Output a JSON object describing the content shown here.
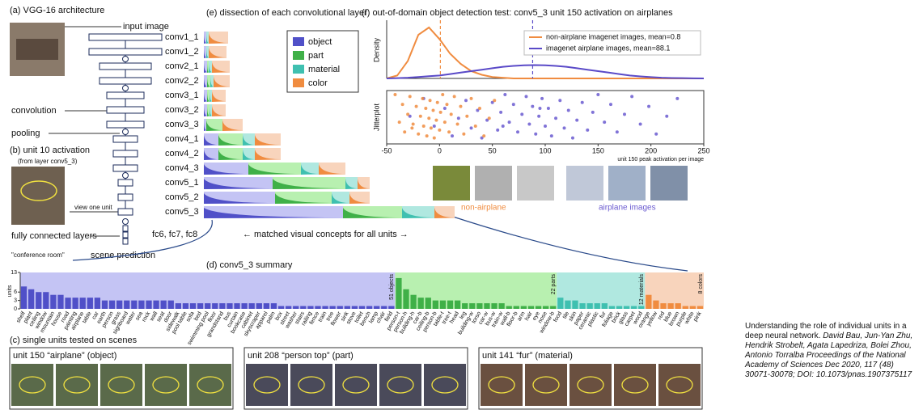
{
  "figure": {
    "panel_a": {
      "label": "(a) VGG-16 architecture",
      "input": "input image",
      "convolution": "convolution",
      "pooling": "pooling",
      "fc": "fc6, fc7, fc8",
      "fc_label": "fully connected layers",
      "scene": "\"conference room\"",
      "scene_label": "scene prediction"
    },
    "panel_b": {
      "label": "(b) unit 10 activation",
      "sub": "(from layer conv5_3)",
      "view": "view one unit"
    },
    "panel_e": {
      "title": "(e) dissection of each convolutional layer",
      "legend": [
        {
          "name": "object",
          "color": "#5050c8",
          "light": "#c4c4f4"
        },
        {
          "name": "part",
          "color": "#3fb048",
          "light": "#b8f0b0"
        },
        {
          "name": "material",
          "color": "#3fc0b0",
          "light": "#b0e8e0"
        },
        {
          "name": "color",
          "color": "#f08c40",
          "light": "#f8d4bc"
        }
      ],
      "layers": [
        {
          "name": "conv1_1",
          "units": [
            3,
            0,
            3,
            24
          ]
        },
        {
          "name": "conv1_2",
          "units": [
            3,
            0,
            3,
            22
          ]
        },
        {
          "name": "conv2_1",
          "units": [
            4,
            2,
            4,
            22
          ]
        },
        {
          "name": "conv2_2",
          "units": [
            4,
            4,
            4,
            20
          ]
        },
        {
          "name": "conv3_1",
          "units": [
            4,
            3,
            3,
            17
          ]
        },
        {
          "name": "conv3_2",
          "units": [
            4,
            3,
            3,
            17
          ]
        },
        {
          "name": "conv3_3",
          "units": [
            3,
            20,
            0,
            25
          ]
        },
        {
          "name": "conv4_1",
          "units": [
            18,
            30,
            15,
            32
          ]
        },
        {
          "name": "conv4_2",
          "units": [
            18,
            30,
            15,
            32
          ]
        },
        {
          "name": "conv4_3",
          "units": [
            55,
            65,
            22,
            33
          ]
        },
        {
          "name": "conv5_1",
          "units": [
            85,
            90,
            15,
            15
          ]
        },
        {
          "name": "conv5_2",
          "units": [
            88,
            70,
            22,
            25
          ]
        },
        {
          "name": "conv5_3",
          "units": [
            172,
            73,
            40,
            25
          ]
        }
      ],
      "caption": "← matched visual concepts for all units →"
    },
    "panel_f": {
      "title": "(f) out-of-domain object detection test: conv5_3 unit 150 activation on airplanes",
      "non_airplane": "non-airplane",
      "airplane": "airplane images"
    },
    "panel_c": {
      "title": "(c) single units tested on scenes",
      "units": [
        "unit 150 “airplane” (object)",
        "unit 208 “person top” (part)",
        "unit 141 “fur” (material)"
      ]
    },
    "citation": {
      "plain": "Understanding the role of individual units in a deep neural network.",
      "italic": "David Bau, Jun-Yan Zhu, Hendrik Strobelt, Agata Lapedriza, Bolei Zhou, Antonio Torralba Proceedings of the National Academy of Sciences Dec 2020, 117 (48) 30071-30078; DOI: 10.1073/pnas.1907375117"
    }
  },
  "chart_data": [
    {
      "type": "bar",
      "title": "(d) conv5_3 summary",
      "y_label": "units",
      "ylim": [
        0,
        13
      ],
      "yticks": [
        0,
        3,
        6,
        13
      ],
      "groups": [
        {
          "label": "51 objects",
          "color": "#5050c8",
          "background": "#c4c4f4",
          "categories": [
            "shelf",
            "plant",
            "ceiling",
            "window",
            "mountain",
            "house",
            "road",
            "painting",
            "airplane",
            "table",
            "car",
            "earth",
            "person",
            "grass",
            "signboard",
            "water",
            "sea",
            "rock",
            "wall",
            "seat",
            "door",
            "sidewalk",
            "pool table",
            "sofa",
            "bed",
            "swimming pool",
            "floor",
            "grandstand",
            "bus",
            "curtain",
            "bookcase",
            "cabinet",
            "skyscraper",
            "apparel",
            "palm",
            "box",
            "street",
            "washer",
            "stairs",
            "railing",
            "fence",
            "train",
            "tree",
            "flower",
            "sink",
            "stove",
            "toilet",
            "bench",
            "lamp",
            "chair",
            "field"
          ],
          "values": [
            8,
            7,
            6,
            6,
            5,
            5,
            4,
            4,
            4,
            4,
            4,
            3,
            3,
            3,
            3,
            3,
            3,
            3,
            3,
            3,
            3,
            2,
            2,
            2,
            2,
            2,
            2,
            2,
            2,
            2,
            2,
            2,
            2,
            2,
            2,
            1,
            1,
            1,
            1,
            1,
            1,
            1,
            1,
            1,
            1,
            1,
            1,
            1,
            1,
            1,
            1
          ]
        },
        {
          "label": "22 parts",
          "color": "#3fb048",
          "background": "#b8f0b0",
          "categories": [
            "person-t",
            "person-h",
            "building-h",
            "car-b",
            "ceiling-b",
            "person-b",
            "table-t",
            "tree-t",
            "head",
            "leg",
            "building-w",
            "torso",
            "car-w",
            "bus-w",
            "train-w",
            "wall-b",
            "floor-b",
            "arm",
            "hair",
            "eye",
            "nose",
            "window-b"
          ],
          "values": [
            11,
            7,
            5,
            4,
            4,
            3,
            3,
            3,
            3,
            2,
            2,
            2,
            2,
            2,
            2,
            1,
            1,
            1,
            1,
            1,
            1,
            1
          ]
        },
        {
          "label": "12 materials",
          "color": "#3fc0b0",
          "background": "#b0e8e0",
          "categories": [
            "food",
            "tile",
            "skin",
            "paper",
            "ceramic",
            "plastic",
            "fur",
            "foliage",
            "brick",
            "glass",
            "carpet",
            "wood"
          ],
          "values": [
            4,
            3,
            3,
            2,
            2,
            2,
            2,
            1,
            1,
            1,
            1,
            1
          ]
        },
        {
          "label": "8 colors",
          "color": "#f08c40",
          "background": "#f8d4bc",
          "categories": [
            "orange",
            "yellow",
            "red",
            "blue",
            "brown",
            "purple",
            "white",
            "pink"
          ],
          "values": [
            5,
            3,
            2,
            2,
            2,
            1,
            1,
            1
          ]
        }
      ]
    },
    {
      "type": "line",
      "y_label": "Density",
      "xlim": [
        -50,
        250
      ],
      "ylim": [
        0,
        0.04
      ],
      "x": [
        -50,
        -40,
        -30,
        -20,
        -10,
        0,
        10,
        20,
        30,
        40,
        50,
        60,
        70,
        80,
        90,
        100,
        110,
        120,
        130,
        140,
        150,
        160,
        170,
        180,
        190,
        200,
        210,
        220,
        230,
        240,
        250
      ],
      "series": [
        {
          "name": "non-airplane imagenet images, mean=0.8",
          "color": "#f08c40",
          "mean": 0.8,
          "values": [
            0,
            0.002,
            0.012,
            0.03,
            0.035,
            0.027,
            0.017,
            0.01,
            0.005,
            0.0025,
            0.001,
            0.0005,
            0,
            0,
            0,
            0,
            0,
            0,
            0,
            0,
            0,
            0,
            0,
            0,
            0,
            0,
            0,
            0,
            0,
            0,
            0
          ]
        },
        {
          "name": "imagenet airplane images, mean=88.1",
          "color": "#5a4ac8",
          "mean": 88.1,
          "values": [
            0,
            0.0002,
            0.0005,
            0.001,
            0.0015,
            0.002,
            0.003,
            0.004,
            0.005,
            0.006,
            0.007,
            0.008,
            0.0086,
            0.009,
            0.0092,
            0.009,
            0.0086,
            0.008,
            0.007,
            0.006,
            0.005,
            0.004,
            0.003,
            0.002,
            0.0014,
            0.0009,
            0.0005,
            0.0003,
            0.0002,
            0.0001,
            0
          ]
        }
      ]
    },
    {
      "type": "scatter",
      "y_label": "Jitterplot",
      "x_label": "unit 150 peak activation per image",
      "xlim": [
        -50,
        250
      ],
      "xticks": [
        -50,
        0,
        50,
        100,
        150,
        200,
        250
      ],
      "series": [
        {
          "color": "#f08c40",
          "x": [
            -42,
            -38,
            -35,
            -33,
            -30,
            -28,
            -25,
            -22,
            -20,
            -18,
            -16,
            -15,
            -13,
            -12,
            -10,
            -9,
            -8,
            -6,
            -5,
            -3,
            -2,
            0,
            1,
            3,
            5,
            7,
            9,
            11,
            14,
            17,
            20,
            23,
            26,
            30,
            34,
            38,
            42,
            47,
            52,
            -26
          ]
        },
        {
          "color": "#6a5ad0",
          "x": [
            -28,
            -15,
            -5,
            5,
            12,
            18,
            25,
            30,
            36,
            40,
            45,
            50,
            55,
            58,
            62,
            66,
            70,
            74,
            78,
            82,
            85,
            88,
            91,
            94,
            97,
            100,
            103,
            106,
            110,
            114,
            118,
            122,
            126,
            130,
            135,
            140,
            145,
            150,
            156,
            162,
            168,
            175,
            182,
            190,
            198,
            205,
            215,
            225,
            60,
            95
          ]
        }
      ]
    }
  ]
}
